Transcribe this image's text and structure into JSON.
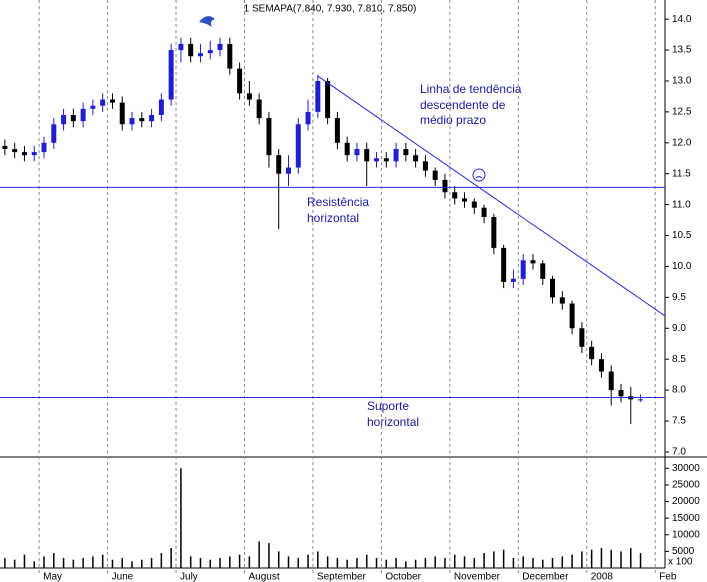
{
  "chart_data": {
    "type": "candlestick",
    "title": "1 SEMAPA(7.840, 7.930, 7.810, 7.850)",
    "categories": [
      null,
      null,
      null,
      null,
      "May",
      null,
      null,
      null,
      null,
      null,
      null,
      "June",
      null,
      null,
      null,
      null,
      null,
      null,
      "July",
      null,
      null,
      null,
      null,
      null,
      null,
      "August",
      null,
      null,
      null,
      null,
      null,
      null,
      "September",
      null,
      null,
      null,
      null,
      null,
      null,
      "October",
      null,
      null,
      null,
      null,
      null,
      null,
      "November",
      null,
      null,
      null,
      null,
      null,
      null,
      "December",
      null,
      null,
      null,
      null,
      null,
      null,
      "2008",
      null,
      null,
      null,
      null,
      null,
      null,
      "Feb"
    ],
    "open": [
      11.95,
      11.9,
      11.85,
      11.8,
      11.85,
      12.0,
      12.3,
      12.45,
      12.35,
      12.55,
      12.6,
      12.7,
      12.65,
      12.3,
      12.4,
      12.35,
      12.45,
      12.7,
      13.5,
      13.6,
      13.4,
      13.45,
      13.5,
      13.6,
      13.2,
      12.8,
      12.7,
      12.4,
      11.8,
      11.5,
      11.6,
      12.3,
      12.5,
      13.0,
      12.4,
      12.0,
      11.8,
      11.9,
      11.7,
      11.75,
      11.7,
      11.9,
      11.8,
      11.7,
      11.55,
      11.4,
      11.2,
      11.1,
      11.05,
      10.95,
      10.8,
      10.3,
      9.75,
      9.8,
      10.1,
      10.05,
      9.8,
      9.5,
      9.4,
      9.0,
      8.7,
      8.5,
      8.3,
      8.0,
      7.9,
      7.84,
      null,
      null
    ],
    "high": [
      12.05,
      12.0,
      11.95,
      11.95,
      12.1,
      12.4,
      12.55,
      12.55,
      12.65,
      12.7,
      12.8,
      12.8,
      12.75,
      12.5,
      12.5,
      12.55,
      12.8,
      13.6,
      13.7,
      13.7,
      13.6,
      13.65,
      13.7,
      13.7,
      13.3,
      13.0,
      12.8,
      12.5,
      11.9,
      11.8,
      12.4,
      12.7,
      13.1,
      13.05,
      12.5,
      12.1,
      12.0,
      12.0,
      11.85,
      11.85,
      12.0,
      12.0,
      11.9,
      11.8,
      11.6,
      11.5,
      11.3,
      11.2,
      11.1,
      11.0,
      10.85,
      10.35,
      9.95,
      10.2,
      10.2,
      10.1,
      9.85,
      9.6,
      9.45,
      9.1,
      8.8,
      8.6,
      8.4,
      8.1,
      8.05,
      7.93,
      null,
      null
    ],
    "low": [
      11.8,
      11.75,
      11.7,
      11.7,
      11.75,
      11.9,
      12.2,
      12.25,
      12.25,
      12.45,
      12.5,
      12.55,
      12.2,
      12.2,
      12.25,
      12.25,
      12.35,
      12.6,
      13.3,
      13.3,
      13.3,
      13.35,
      13.4,
      13.1,
      12.7,
      12.6,
      12.3,
      11.6,
      10.6,
      11.3,
      11.5,
      12.2,
      12.4,
      12.3,
      11.9,
      11.7,
      11.7,
      11.3,
      11.6,
      11.6,
      11.6,
      11.7,
      11.6,
      11.45,
      11.3,
      11.1,
      11.0,
      10.95,
      10.85,
      10.7,
      10.2,
      9.65,
      9.65,
      9.7,
      9.95,
      9.7,
      9.4,
      9.3,
      8.9,
      8.6,
      8.4,
      8.2,
      7.75,
      7.8,
      7.45,
      7.81,
      null,
      null
    ],
    "close": [
      11.9,
      11.85,
      11.8,
      11.85,
      12.0,
      12.3,
      12.45,
      12.35,
      12.55,
      12.6,
      12.7,
      12.65,
      12.3,
      12.4,
      12.35,
      12.45,
      12.7,
      13.5,
      13.6,
      13.4,
      13.45,
      13.5,
      13.6,
      13.2,
      12.8,
      12.7,
      12.4,
      11.8,
      11.5,
      11.6,
      12.3,
      12.5,
      13.0,
      12.4,
      12.0,
      11.8,
      11.9,
      11.7,
      11.75,
      11.7,
      11.9,
      11.8,
      11.7,
      11.55,
      11.4,
      11.2,
      11.1,
      11.05,
      10.95,
      10.8,
      10.3,
      9.75,
      9.8,
      10.1,
      10.05,
      9.8,
      9.5,
      9.4,
      9.0,
      8.7,
      8.5,
      8.3,
      8.0,
      7.9,
      7.85,
      7.85,
      null,
      null
    ],
    "volume": [
      3000,
      2500,
      4000,
      2000,
      3500,
      4500,
      3000,
      2500,
      3000,
      3500,
      4000,
      2500,
      3000,
      2000,
      2500,
      3000,
      4500,
      6000,
      30000,
      3500,
      3000,
      2500,
      3000,
      3500,
      4000,
      3500,
      8000,
      7500,
      5000,
      3500,
      3000,
      4000,
      5000,
      3500,
      3000,
      2500,
      3000,
      4000,
      3000,
      2500,
      3000,
      2000,
      2500,
      3000,
      3500,
      3000,
      4000,
      3500,
      3000,
      4500,
      5000,
      5500,
      3000,
      3500,
      3000,
      2500,
      3000,
      3500,
      4000,
      5000,
      5500,
      6000,
      5500,
      5000,
      6000,
      4500,
      null,
      null
    ],
    "up_color": "#1f1fd0",
    "down_color": "#000000",
    "line_color": "#2a2ad8",
    "ylim": [
      6.95,
      14.31
    ],
    "yticks": [
      {
        "value": 7,
        "label": "7.0"
      },
      7.5,
      {
        "value": 8,
        "label": "8.0"
      },
      8.5,
      {
        "value": 9,
        "label": "9.0"
      },
      9.5,
      {
        "value": 10,
        "label": "10.0"
      },
      10.5,
      {
        "value": 11,
        "label": "11.0"
      },
      11.5,
      {
        "value": 12,
        "label": "12.0"
      },
      12.5,
      {
        "value": 13,
        "label": "13.0"
      },
      13.5,
      {
        "value": 14,
        "label": "14.0"
      }
    ],
    "volume_ylim": [
      0,
      32500
    ],
    "volume_yticks": [
      5000,
      10000,
      15000,
      20000,
      25000,
      30000
    ],
    "volume_unit": "x 100",
    "resistance": 11.28,
    "support": 7.88,
    "trendline": [
      13.08,
      9.2
    ],
    "annotations": [
      [
        "Linha de tendência",
        "descendente de",
        "médio prazo"
      ],
      [
        "Resistência",
        "horizontal"
      ],
      [
        "Suporte",
        "horizontal"
      ]
    ]
  }
}
